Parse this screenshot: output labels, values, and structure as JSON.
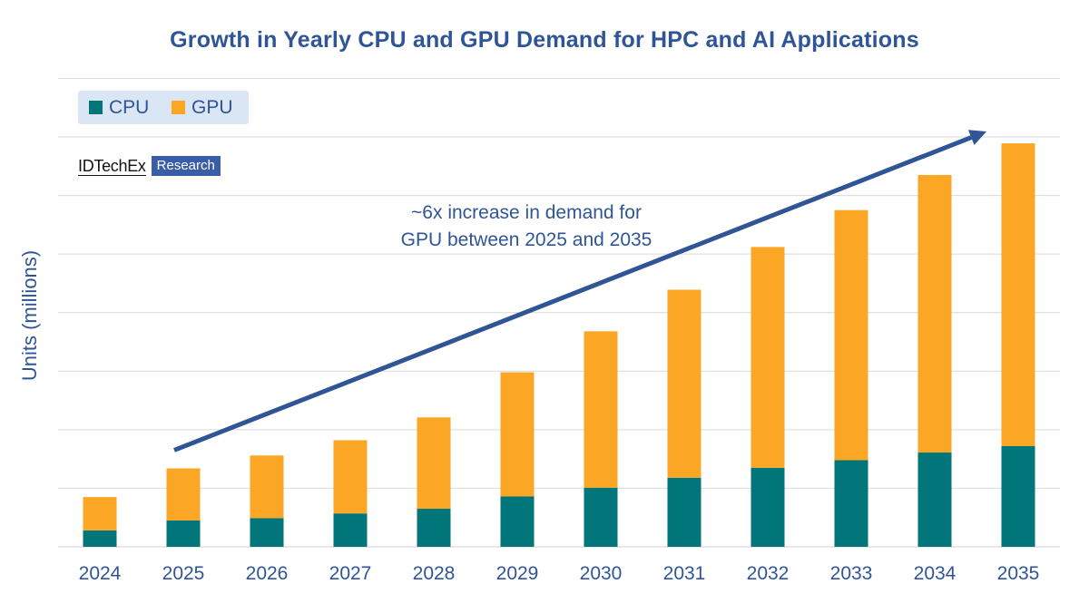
{
  "chart_data": {
    "type": "bar",
    "stacked": true,
    "title": "Growth in Yearly CPU and GPU Demand for HPC and AI Applications",
    "ylabel": "Units (millions)",
    "xlabel": "",
    "categories": [
      "2024",
      "2025",
      "2026",
      "2027",
      "2028",
      "2029",
      "2030",
      "2031",
      "2032",
      "2033",
      "2034",
      "2035"
    ],
    "series": [
      {
        "name": "CPU",
        "color": "#00767a",
        "values": [
          0.28,
          0.45,
          0.49,
          0.57,
          0.65,
          0.86,
          1.01,
          1.18,
          1.35,
          1.48,
          1.61,
          1.72
        ]
      },
      {
        "name": "GPU",
        "color": "#fba624",
        "values": [
          0.57,
          0.89,
          1.07,
          1.25,
          1.56,
          2.12,
          2.67,
          3.21,
          3.77,
          4.27,
          4.74,
          5.17
        ]
      }
    ],
    "ylim": [
      0,
      7
    ],
    "grid": true,
    "legend": "top-left",
    "annotation": {
      "lines": [
        "~6x increase in demand for",
        "GPU between 2025 and 2035"
      ],
      "arrow_from": {
        "x": "2025",
        "y": 1.65
      },
      "arrow_to": {
        "x": "2035",
        "y": 7.0
      }
    }
  },
  "logo": {
    "main": "IDTechEx",
    "badge": "Research"
  }
}
